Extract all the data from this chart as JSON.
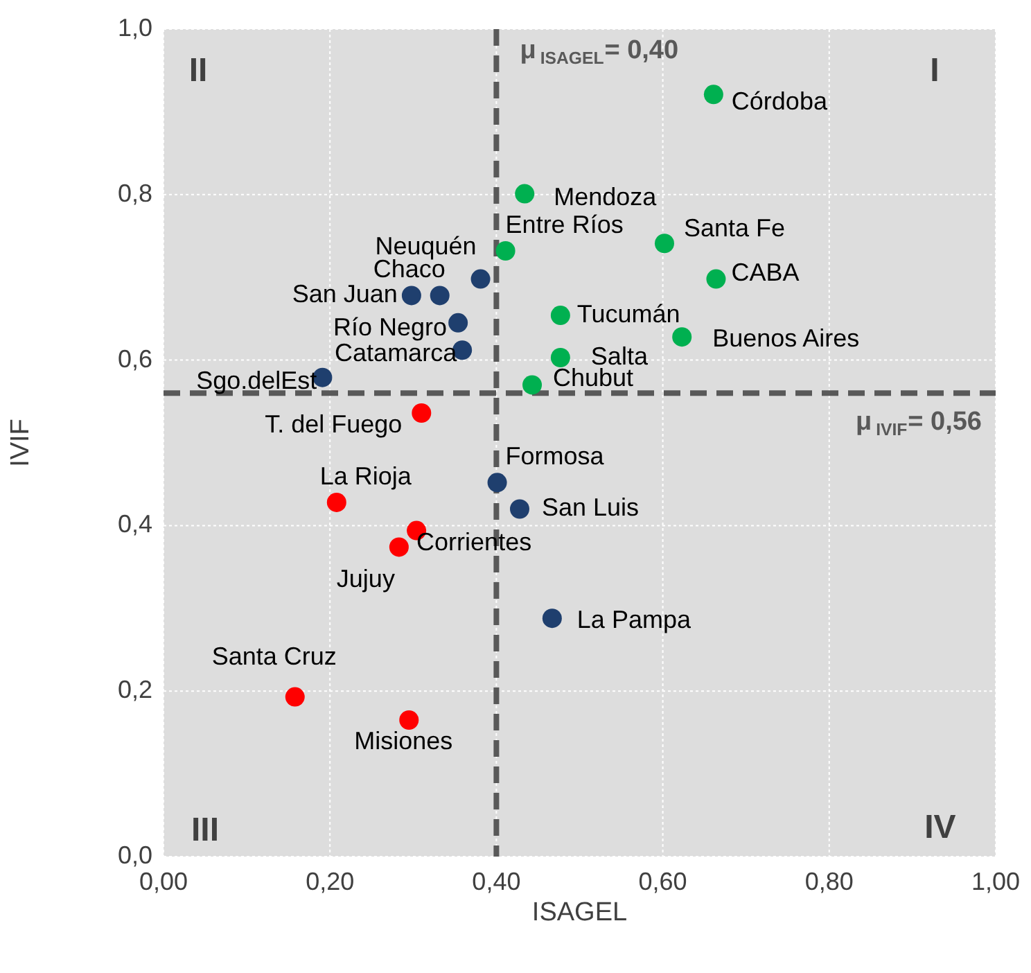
{
  "chart_data": {
    "type": "scatter",
    "xlabel": "ISAGEL",
    "ylabel": "IVIF",
    "xlim": [
      0,
      1
    ],
    "ylim": [
      0,
      1
    ],
    "xticks": [
      {
        "value": 0,
        "label": "0,00"
      },
      {
        "value": 0.2,
        "label": "0,20"
      },
      {
        "value": 0.4,
        "label": "0,40"
      },
      {
        "value": 0.6,
        "label": "0,60"
      },
      {
        "value": 0.8,
        "label": "0,80"
      },
      {
        "value": 1,
        "label": "1,00"
      }
    ],
    "yticks": [
      {
        "value": 0,
        "label": "0,0"
      },
      {
        "value": 0.2,
        "label": "0,2"
      },
      {
        "value": 0.4,
        "label": "0,4"
      },
      {
        "value": 0.6,
        "label": "0,6"
      },
      {
        "value": 0.8,
        "label": "0,8"
      },
      {
        "value": 1,
        "label": "1,0"
      }
    ],
    "grid": true,
    "legend": false,
    "marker": "circle",
    "series": [
      {
        "color": "#00b050",
        "x": [
          0.661,
          0.434,
          0.411,
          0.602,
          0.664,
          0.477,
          0.623,
          0.477,
          0.443
        ],
        "values": [
          0.921,
          0.801,
          0.732,
          0.741,
          0.698,
          0.654,
          0.628,
          0.603,
          0.57
        ]
      },
      {
        "color": "#1f3f6e",
        "x": [
          0.381,
          0.332,
          0.298,
          0.354,
          0.359,
          0.191,
          0.401,
          0.428,
          0.467
        ],
        "values": [
          0.698,
          0.678,
          0.678,
          0.645,
          0.612,
          0.579,
          0.452,
          0.42,
          0.288
        ]
      },
      {
        "color": "#ff0000",
        "x": [
          0.31,
          0.208,
          0.304,
          0.283,
          0.158,
          0.295
        ],
        "values": [
          0.536,
          0.428,
          0.394,
          0.374,
          0.193,
          0.165
        ]
      }
    ],
    "ref_lines": [
      {
        "axis": "x",
        "value": 0.4,
        "label": "μ$_{ISAGEL}$= 0,40",
        "color": "#595959",
        "line_style": "dashed"
      },
      {
        "axis": "y",
        "value": 0.56,
        "label": "μ$_{IVIF}$= 0,56",
        "color": "#595959",
        "line_style": "dashed"
      }
    ],
    "annotations": [
      "I",
      "II",
      "III",
      "IV",
      {
        "text": "Córdoba",
        "x": 0.661,
        "y": 0.921
      },
      {
        "text": "Mendoza",
        "x": 0.434,
        "y": 0.801
      },
      {
        "text": "Entre Ríos",
        "x": 0.411,
        "y": 0.732
      },
      {
        "text": "Santa Fe",
        "x": 0.602,
        "y": 0.741
      },
      {
        "text": "CABA",
        "x": 0.664,
        "y": 0.698
      },
      {
        "text": "Tucumán",
        "x": 0.477,
        "y": 0.654
      },
      {
        "text": "Buenos Aires",
        "x": 0.623,
        "y": 0.628
      },
      {
        "text": "Salta",
        "x": 0.477,
        "y": 0.603
      },
      {
        "text": "Chubut",
        "x": 0.443,
        "y": 0.57
      },
      {
        "text": "Neuquén",
        "x": 0.381,
        "y": 0.698
      },
      {
        "text": "Chaco",
        "x": 0.332,
        "y": 0.678
      },
      {
        "text": "San Juan",
        "x": 0.298,
        "y": 0.678
      },
      {
        "text": "Río Negro",
        "x": 0.354,
        "y": 0.645
      },
      {
        "text": "Catamarca",
        "x": 0.359,
        "y": 0.612
      },
      {
        "text": "Sgo.delEst",
        "x": 0.191,
        "y": 0.579
      },
      {
        "text": "T. del Fuego",
        "x": 0.31,
        "y": 0.536
      },
      {
        "text": "La Rioja",
        "x": 0.208,
        "y": 0.428
      },
      {
        "text": "Corrientes",
        "x": 0.304,
        "y": 0.394
      },
      {
        "text": "Jujuy",
        "x": 0.283,
        "y": 0.374
      },
      {
        "text": "Formosa",
        "x": 0.401,
        "y": 0.452
      },
      {
        "text": "San Luis",
        "x": 0.428,
        "y": 0.42
      },
      {
        "text": "La Pampa",
        "x": 0.467,
        "y": 0.288
      },
      {
        "text": "Santa Cruz",
        "x": 0.158,
        "y": 0.193
      },
      {
        "text": "Misiones",
        "x": 0.295,
        "y": 0.165
      }
    ]
  }
}
